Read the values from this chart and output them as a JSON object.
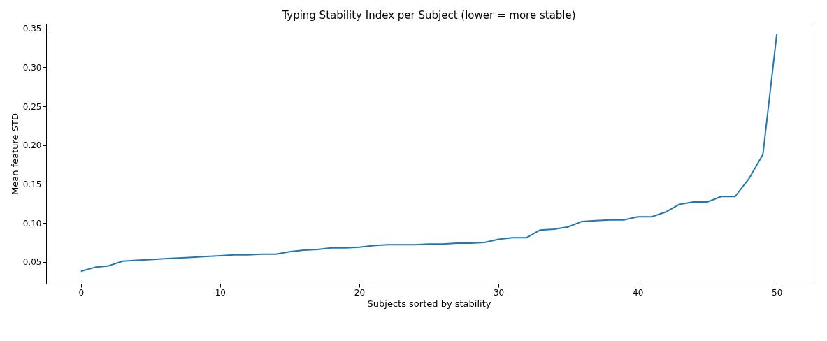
{
  "chart_data": {
    "type": "line",
    "title": "Typing Stability Index per Subject (lower = more stable)",
    "xlabel": "Subjects sorted by stability",
    "ylabel": "Mean feature STD",
    "x": [
      0,
      1,
      2,
      3,
      4,
      5,
      6,
      7,
      8,
      9,
      10,
      11,
      12,
      13,
      14,
      15,
      16,
      17,
      18,
      19,
      20,
      21,
      22,
      23,
      24,
      25,
      26,
      27,
      28,
      29,
      30,
      31,
      32,
      33,
      34,
      35,
      36,
      37,
      38,
      39,
      40,
      41,
      42,
      43,
      44,
      45,
      46,
      47,
      48,
      49,
      50
    ],
    "series": [
      {
        "color": "#1f77b4",
        "values": [
          0.038,
          0.043,
          0.045,
          0.051,
          0.052,
          0.053,
          0.054,
          0.055,
          0.056,
          0.057,
          0.058,
          0.059,
          0.059,
          0.06,
          0.06,
          0.063,
          0.065,
          0.066,
          0.068,
          0.068,
          0.069,
          0.071,
          0.072,
          0.072,
          0.072,
          0.073,
          0.073,
          0.074,
          0.074,
          0.075,
          0.079,
          0.081,
          0.081,
          0.091,
          0.092,
          0.095,
          0.102,
          0.103,
          0.104,
          0.104,
          0.108,
          0.108,
          0.114,
          0.124,
          0.127,
          0.127,
          0.134,
          0.134,
          0.157,
          0.188,
          0.343
        ]
      }
    ],
    "xlim": [
      -2.5,
      52.5
    ],
    "ylim": [
      0.022,
      0.356
    ],
    "xticks": [
      0,
      10,
      20,
      30,
      40,
      50
    ],
    "yticks": [
      0.05,
      {
        "value": 0.1,
        "label": "0.10"
      },
      0.15,
      {
        "value": 0.2,
        "label": "0.20"
      },
      0.25,
      {
        "value": 0.3,
        "label": "0.30"
      },
      0.35
    ],
    "grid": false,
    "legend": false,
    "line_style": "solid",
    "marker": "none"
  }
}
